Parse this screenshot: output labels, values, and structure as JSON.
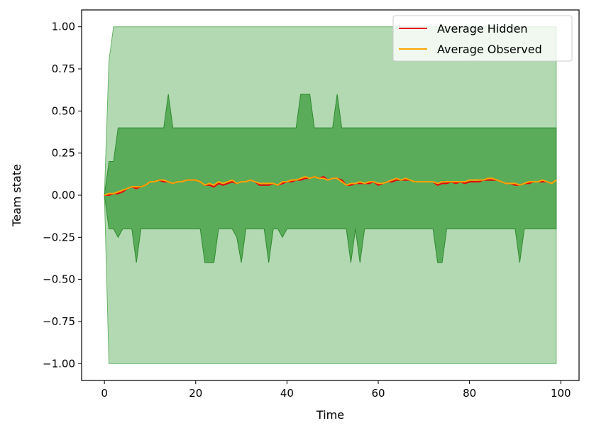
{
  "chart_data": {
    "type": "area",
    "title": "",
    "xlabel": "Time",
    "ylabel": "Team state",
    "xlim": [
      -5,
      104
    ],
    "ylim": [
      -1.1,
      1.1
    ],
    "xticks": [
      0,
      20,
      40,
      60,
      80,
      100
    ],
    "xtick_labels": [
      "0",
      "20",
      "40",
      "60",
      "80",
      "100"
    ],
    "yticks": [
      1.0,
      0.75,
      0.5,
      0.25,
      0.0,
      -0.25,
      -0.5,
      -0.75,
      -1.0
    ],
    "ytick_labels": [
      "1.00",
      "0.75",
      "0.50",
      "0.25",
      "0.00",
      "−0.25",
      "−0.50",
      "−0.75",
      "−1.00"
    ],
    "grid": false,
    "legend_position": "top-right",
    "x": [
      0,
      1,
      2,
      3,
      4,
      5,
      6,
      7,
      8,
      9,
      10,
      11,
      12,
      13,
      14,
      15,
      16,
      17,
      18,
      19,
      20,
      21,
      22,
      23,
      24,
      25,
      26,
      27,
      28,
      29,
      30,
      31,
      32,
      33,
      34,
      35,
      36,
      37,
      38,
      39,
      40,
      41,
      42,
      43,
      44,
      45,
      46,
      47,
      48,
      49,
      50,
      51,
      52,
      53,
      54,
      55,
      56,
      57,
      58,
      59,
      60,
      61,
      62,
      63,
      64,
      65,
      66,
      67,
      68,
      69,
      70,
      71,
      72,
      73,
      74,
      75,
      76,
      77,
      78,
      79,
      80,
      81,
      82,
      83,
      84,
      85,
      86,
      87,
      88,
      89,
      90,
      91,
      92,
      93,
      94,
      95,
      96,
      97,
      98,
      99
    ],
    "bands": [
      {
        "lower": [
          0,
          -1,
          -1,
          -1,
          -1,
          -1,
          -1,
          -1,
          -1,
          -1,
          -1,
          -1,
          -1,
          -1,
          -1,
          -1,
          -1,
          -1,
          -1,
          -1,
          -1,
          -1,
          -1,
          -1,
          -1,
          -1,
          -1,
          -1,
          -1,
          -1,
          -1,
          -1,
          -1,
          -1,
          -1,
          -1,
          -1,
          -1,
          -1,
          -1,
          -1,
          -1,
          -1,
          -1,
          -1,
          -1,
          -1,
          -1,
          -1,
          -1,
          -1,
          -1,
          -1,
          -1,
          -1,
          -1,
          -1,
          -1,
          -1,
          -1,
          -1,
          -1,
          -1,
          -1,
          -1,
          -1,
          -1,
          -1,
          -1,
          -1,
          -1,
          -1,
          -1,
          -1,
          -1,
          -1,
          -1,
          -1,
          -1,
          -1,
          -1,
          -1,
          -1,
          -1,
          -1,
          -1,
          -1,
          -1,
          -1,
          -1,
          -1,
          -1,
          -1,
          -1,
          -1,
          -1,
          -1,
          -1,
          -1,
          -1
        ],
        "upper": [
          0,
          0.8,
          1,
          1,
          1,
          1,
          1,
          1,
          1,
          1,
          1,
          1,
          1,
          1,
          1,
          1,
          1,
          1,
          1,
          1,
          1,
          1,
          1,
          1,
          1,
          1,
          1,
          1,
          1,
          1,
          1,
          1,
          1,
          1,
          1,
          1,
          1,
          1,
          1,
          1,
          1,
          1,
          1,
          1,
          1,
          1,
          1,
          1,
          1,
          1,
          1,
          1,
          1,
          1,
          1,
          1,
          1,
          1,
          1,
          1,
          1,
          1,
          1,
          1,
          1,
          1,
          1,
          1,
          1,
          1,
          1,
          1,
          1,
          1,
          1,
          1,
          1,
          1,
          1,
          1,
          1,
          1,
          1,
          1,
          1,
          1,
          1,
          1,
          1,
          1,
          1,
          1,
          1,
          1,
          1,
          1,
          1,
          1,
          1,
          1
        ],
        "color": "#b3d9b3",
        "edge": "#66b366"
      },
      {
        "lower": [
          0,
          -0.2,
          -0.2,
          -0.25,
          -0.2,
          -0.2,
          -0.2,
          -0.4,
          -0.2,
          -0.2,
          -0.2,
          -0.2,
          -0.2,
          -0.2,
          -0.2,
          -0.2,
          -0.2,
          -0.2,
          -0.2,
          -0.2,
          -0.2,
          -0.2,
          -0.4,
          -0.4,
          -0.4,
          -0.2,
          -0.2,
          -0.2,
          -0.2,
          -0.25,
          -0.4,
          -0.2,
          -0.2,
          -0.2,
          -0.2,
          -0.2,
          -0.4,
          -0.2,
          -0.2,
          -0.25,
          -0.2,
          -0.2,
          -0.2,
          -0.2,
          -0.2,
          -0.2,
          -0.2,
          -0.2,
          -0.2,
          -0.2,
          -0.2,
          -0.2,
          -0.2,
          -0.2,
          -0.4,
          -0.2,
          -0.4,
          -0.2,
          -0.2,
          -0.2,
          -0.2,
          -0.2,
          -0.2,
          -0.2,
          -0.2,
          -0.2,
          -0.2,
          -0.2,
          -0.2,
          -0.2,
          -0.2,
          -0.2,
          -0.2,
          -0.4,
          -0.4,
          -0.2,
          -0.2,
          -0.2,
          -0.2,
          -0.2,
          -0.2,
          -0.2,
          -0.2,
          -0.2,
          -0.2,
          -0.2,
          -0.2,
          -0.2,
          -0.2,
          -0.2,
          -0.2,
          -0.4,
          -0.2,
          -0.2,
          -0.2,
          -0.2,
          -0.2,
          -0.2,
          -0.2,
          -0.2
        ],
        "upper": [
          0,
          0.2,
          0.2,
          0.4,
          0.4,
          0.4,
          0.4,
          0.4,
          0.4,
          0.4,
          0.4,
          0.4,
          0.4,
          0.4,
          0.6,
          0.4,
          0.4,
          0.4,
          0.4,
          0.4,
          0.4,
          0.4,
          0.4,
          0.4,
          0.4,
          0.4,
          0.4,
          0.4,
          0.4,
          0.4,
          0.4,
          0.4,
          0.4,
          0.4,
          0.4,
          0.4,
          0.4,
          0.4,
          0.4,
          0.4,
          0.4,
          0.4,
          0.4,
          0.6,
          0.6,
          0.6,
          0.4,
          0.4,
          0.4,
          0.4,
          0.4,
          0.6,
          0.4,
          0.4,
          0.4,
          0.4,
          0.4,
          0.4,
          0.4,
          0.4,
          0.4,
          0.4,
          0.4,
          0.4,
          0.4,
          0.4,
          0.4,
          0.4,
          0.4,
          0.4,
          0.4,
          0.4,
          0.4,
          0.4,
          0.4,
          0.4,
          0.4,
          0.4,
          0.4,
          0.4,
          0.4,
          0.4,
          0.4,
          0.4,
          0.4,
          0.4,
          0.4,
          0.4,
          0.4,
          0.4,
          0.4,
          0.4,
          0.4,
          0.4,
          0.4,
          0.4,
          0.4,
          0.4,
          0.4,
          0.4
        ],
        "color": "#5aac5a",
        "edge": "#2e8b2e"
      }
    ],
    "series": [
      {
        "name": "Average Hidden",
        "color": "#e8000b",
        "values": [
          0.0,
          0.0,
          0.01,
          0.01,
          0.02,
          0.04,
          0.05,
          0.04,
          0.05,
          0.06,
          0.08,
          0.08,
          0.09,
          0.08,
          0.08,
          0.07,
          0.08,
          0.08,
          0.09,
          0.09,
          0.09,
          0.08,
          0.06,
          0.06,
          0.05,
          0.07,
          0.06,
          0.07,
          0.08,
          0.07,
          0.08,
          0.08,
          0.09,
          0.08,
          0.06,
          0.06,
          0.06,
          0.07,
          0.06,
          0.07,
          0.08,
          0.08,
          0.09,
          0.09,
          0.1,
          0.1,
          0.11,
          0.1,
          0.11,
          0.09,
          0.1,
          0.1,
          0.09,
          0.06,
          0.06,
          0.07,
          0.07,
          0.07,
          0.07,
          0.08,
          0.06,
          0.07,
          0.08,
          0.08,
          0.09,
          0.09,
          0.09,
          0.09,
          0.08,
          0.08,
          0.08,
          0.08,
          0.08,
          0.06,
          0.07,
          0.07,
          0.08,
          0.07,
          0.08,
          0.07,
          0.08,
          0.08,
          0.08,
          0.09,
          0.09,
          0.09,
          0.09,
          0.08,
          0.07,
          0.07,
          0.06,
          0.06,
          0.07,
          0.07,
          0.08,
          0.08,
          0.08,
          0.08,
          0.07,
          0.09
        ]
      },
      {
        "name": "Average Observed",
        "color": "#ffa500",
        "values": [
          0.0,
          0.01,
          0.01,
          0.02,
          0.03,
          0.04,
          0.05,
          0.05,
          0.05,
          0.06,
          0.08,
          0.08,
          0.09,
          0.09,
          0.08,
          0.07,
          0.08,
          0.08,
          0.09,
          0.09,
          0.09,
          0.08,
          0.06,
          0.07,
          0.06,
          0.08,
          0.07,
          0.08,
          0.09,
          0.07,
          0.08,
          0.08,
          0.09,
          0.08,
          0.07,
          0.07,
          0.07,
          0.07,
          0.06,
          0.08,
          0.08,
          0.09,
          0.09,
          0.1,
          0.11,
          0.1,
          0.11,
          0.1,
          0.1,
          0.09,
          0.1,
          0.1,
          0.08,
          0.06,
          0.07,
          0.07,
          0.08,
          0.07,
          0.08,
          0.08,
          0.07,
          0.07,
          0.08,
          0.09,
          0.1,
          0.09,
          0.1,
          0.09,
          0.08,
          0.08,
          0.08,
          0.08,
          0.08,
          0.07,
          0.08,
          0.08,
          0.08,
          0.08,
          0.08,
          0.08,
          0.09,
          0.09,
          0.09,
          0.09,
          0.1,
          0.1,
          0.09,
          0.08,
          0.07,
          0.07,
          0.07,
          0.06,
          0.07,
          0.08,
          0.08,
          0.08,
          0.09,
          0.08,
          0.07,
          0.09
        ]
      }
    ]
  }
}
